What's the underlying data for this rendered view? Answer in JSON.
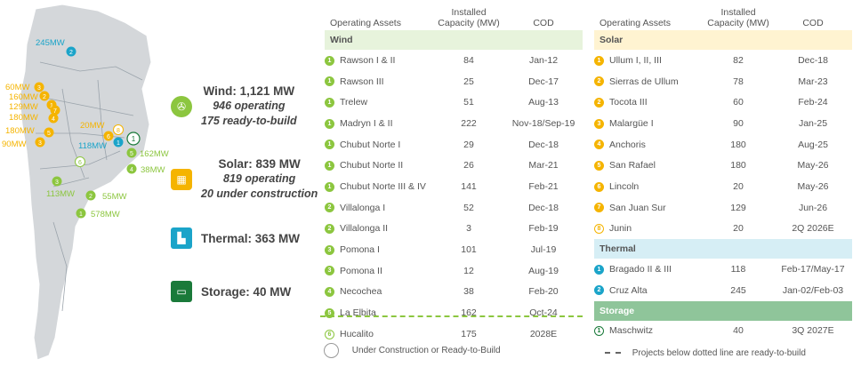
{
  "colors": {
    "wind": "#8cc63f",
    "solar": "#f5b400",
    "thermal": "#1ba4c9",
    "storage": "#1a7a3a",
    "wind_header": "#e7f3dc",
    "solar_header": "#fff3d1",
    "thermal_header": "#d6eef5",
    "storage_header": "#8fc59a"
  },
  "map_labels": {
    "thermal_top": "245MW",
    "solar_a": "60MW",
    "solar_b": "160MW",
    "solar_c": "129MW",
    "solar_d": "180MW",
    "solar_e": "180MW",
    "solar_f": "90MW",
    "solar_g": "20MW",
    "thermal_b": "118MW",
    "wind_a": "162MW",
    "wind_b": "38MW",
    "wind_c": "113MW",
    "wind_d": "55MW",
    "wind_e": "578MW"
  },
  "summary": {
    "wind": {
      "title": "Wind: 1,121 MW",
      "line1": "946 operating",
      "line2": "175 ready-to-build",
      "icon": "wind-turbine-icon"
    },
    "solar": {
      "title": "Solar: 839 MW",
      "line1": "819 operating",
      "line2": "20 under construction",
      "icon": "solar-panel-icon"
    },
    "thermal": {
      "title": "Thermal: 363 MW",
      "icon": "factory-icon"
    },
    "storage": {
      "title": "Storage: 40 MW",
      "icon": "battery-icon"
    }
  },
  "headers": {
    "asset": "Operating Assets",
    "capacity": "Installed Capacity (MW)",
    "cod": "COD"
  },
  "left_table": {
    "section": "Wind",
    "rows": [
      {
        "n": "1",
        "name": "Rawson I & II",
        "cap": "84",
        "cod": "Jan-12"
      },
      {
        "n": "1",
        "name": "Rawson III",
        "cap": "25",
        "cod": "Dec-17"
      },
      {
        "n": "1",
        "name": "Trelew",
        "cap": "51",
        "cod": "Aug-13"
      },
      {
        "n": "1",
        "name": "Madryn I & II",
        "cap": "222",
        "cod": "Nov-18/Sep-19"
      },
      {
        "n": "1",
        "name": "Chubut Norte I",
        "cap": "29",
        "cod": "Dec-18"
      },
      {
        "n": "1",
        "name": "Chubut Norte II",
        "cap": "26",
        "cod": "Mar-21"
      },
      {
        "n": "1",
        "name": "Chubut Norte III & IV",
        "cap": "141",
        "cod": "Feb-21"
      },
      {
        "n": "2",
        "name": "Villalonga I",
        "cap": "52",
        "cod": "Dec-18"
      },
      {
        "n": "2",
        "name": "Villalonga II",
        "cap": "3",
        "cod": "Feb-19"
      },
      {
        "n": "3",
        "name": "Pomona I",
        "cap": "101",
        "cod": "Jul-19"
      },
      {
        "n": "3",
        "name": "Pomona II",
        "cap": "12",
        "cod": "Aug-19"
      },
      {
        "n": "4",
        "name": "Necochea",
        "cap": "38",
        "cod": "Feb-20"
      },
      {
        "n": "5",
        "name": "La Elbita",
        "cap": "162",
        "cod": "Oct-24"
      },
      {
        "n": "6",
        "name": "Hucalito",
        "cap": "175",
        "cod": "2028E",
        "hollow": true
      }
    ]
  },
  "right_table": {
    "solar_section": "Solar",
    "solar_rows": [
      {
        "n": "1",
        "name": "Ullum I, II, III",
        "cap": "82",
        "cod": "Dec-18"
      },
      {
        "n": "2",
        "name": "Sierras de Ullum",
        "cap": "78",
        "cod": "Mar-23"
      },
      {
        "n": "2",
        "name": "Tocota III",
        "cap": "60",
        "cod": "Feb-24"
      },
      {
        "n": "3",
        "name": "Malargüe I",
        "cap": "90",
        "cod": "Jan-25"
      },
      {
        "n": "4",
        "name": "Anchoris",
        "cap": "180",
        "cod": "Aug-25"
      },
      {
        "n": "5",
        "name": "San Rafael",
        "cap": "180",
        "cod": "May-26"
      },
      {
        "n": "6",
        "name": "Lincoln",
        "cap": "20",
        "cod": "May-26"
      },
      {
        "n": "7",
        "name": "San Juan Sur",
        "cap": "129",
        "cod": "Jun-26"
      },
      {
        "n": "8",
        "name": "Junin",
        "cap": "20",
        "cod": "2Q 2026E",
        "hollow": true
      }
    ],
    "thermal_section": "Thermal",
    "thermal_rows": [
      {
        "n": "1",
        "name": "Bragado II & III",
        "cap": "118",
        "cod": "Feb-17/May-17"
      },
      {
        "n": "2",
        "name": "Cruz Alta",
        "cap": "245",
        "cod": "Jan-02/Feb-03"
      }
    ],
    "storage_section": "Storage",
    "storage_rows": [
      {
        "n": "1",
        "name": "Maschwitz",
        "cap": "40",
        "cod": "3Q 2027E",
        "hollow": true
      }
    ]
  },
  "legend": {
    "hollow_label": "Under Construction or Ready-to-Build",
    "dotted_label": "Projects below dotted line are ready-to-build"
  }
}
